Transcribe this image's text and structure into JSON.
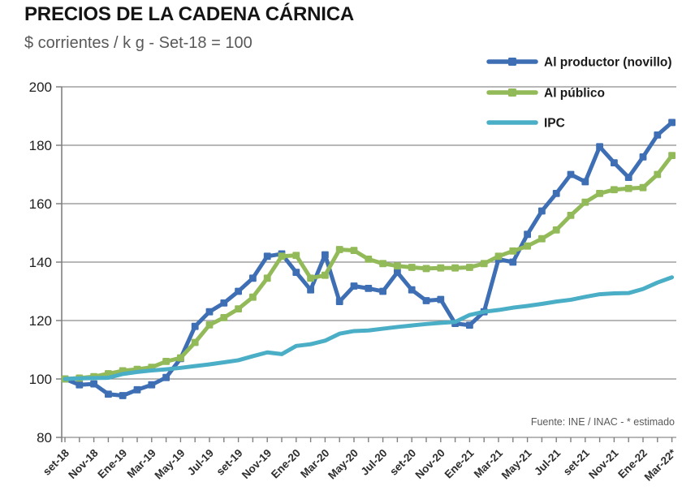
{
  "header": {
    "title": "PRECIOS DE LA CADENA CÁRNICA",
    "subtitle": "$ corrientes / k g - Set-18 = 100"
  },
  "chart_data": {
    "type": "line",
    "title": "PRECIOS DE LA CADENA CÁRNICA",
    "subtitle": "$ corrientes / k g - Set-18 = 100",
    "source_note": "Fuente: INE / INAC - * estimado",
    "ylim": [
      80,
      200
    ],
    "ytick_step": 20,
    "grid": true,
    "legend_position": "top-right",
    "x_tick_labels": [
      "set-18",
      "Nov-18",
      "Ene-19",
      "Mar-19",
      "May-19",
      "Jul-19",
      "set-19",
      "Nov-19",
      "Ene-20",
      "Mar-20",
      "May-20",
      "Jul-20",
      "set-20",
      "Nov-20",
      "Ene-21",
      "Mar-21",
      "May-21",
      "Jul-21",
      "set-21",
      "Nov-21",
      "Ene-22",
      "Mar-22*"
    ],
    "months": [
      "set-18",
      "oct-18",
      "nov-18",
      "dic-18",
      "ene-19",
      "feb-19",
      "mar-19",
      "abr-19",
      "may-19",
      "jun-19",
      "jul-19",
      "ago-19",
      "set-19",
      "oct-19",
      "nov-19",
      "dic-19",
      "ene-20",
      "feb-20",
      "mar-20",
      "abr-20",
      "may-20",
      "jun-20",
      "jul-20",
      "ago-20",
      "set-20",
      "oct-20",
      "nov-20",
      "dic-20",
      "ene-21",
      "feb-21",
      "mar-21",
      "abr-21",
      "may-21",
      "jun-21",
      "jul-21",
      "ago-21",
      "set-21",
      "oct-21",
      "nov-21",
      "dic-21",
      "ene-22",
      "feb-22",
      "mar-22*"
    ],
    "series": [
      {
        "name": "Al productor (novillo)",
        "color": "#3e6fb4",
        "marker": "square",
        "values": [
          100,
          98,
          98.3,
          94.8,
          94.3,
          96.3,
          98,
          100.5,
          107,
          118,
          123,
          126,
          130,
          134.5,
          142,
          142.8,
          136.5,
          130.5,
          142.5,
          126.5,
          131.8,
          131,
          130,
          136.5,
          130.5,
          126.8,
          127.2,
          119,
          118.4,
          123,
          141,
          140,
          149.5,
          157.5,
          163.5,
          170,
          167.5,
          179.5,
          174,
          169,
          176,
          183.5,
          187.8
        ]
      },
      {
        "name": "Al público",
        "color": "#93ba59",
        "marker": "square",
        "values": [
          100,
          100.3,
          100.8,
          101.8,
          102.8,
          103.3,
          104,
          106,
          107.2,
          112.5,
          118.5,
          121,
          124,
          128,
          134.5,
          142,
          142.3,
          134.5,
          135.5,
          144.3,
          144,
          141,
          139.5,
          138.7,
          138.2,
          137.8,
          138,
          138,
          138.2,
          139.5,
          142,
          143.8,
          145.5,
          148,
          151,
          156,
          160.5,
          163.5,
          164.8,
          165.2,
          165.5,
          170,
          176.5
        ]
      },
      {
        "name": "IPC",
        "color": "#4aaec6",
        "marker": "none",
        "values": [
          100,
          100.2,
          100.3,
          100.4,
          101.7,
          102.4,
          102.9,
          103.3,
          103.8,
          104.4,
          105,
          105.7,
          106.4,
          107.8,
          109.1,
          108.5,
          111.3,
          111.9,
          113.1,
          115.5,
          116.4,
          116.6,
          117.2,
          117.8,
          118.3,
          118.8,
          119.2,
          119.5,
          121.9,
          123,
          123.6,
          124.4,
          125,
          125.7,
          126.5,
          127.1,
          128.1,
          129,
          129.3,
          129.4,
          130.8,
          133,
          134.8
        ]
      }
    ]
  }
}
